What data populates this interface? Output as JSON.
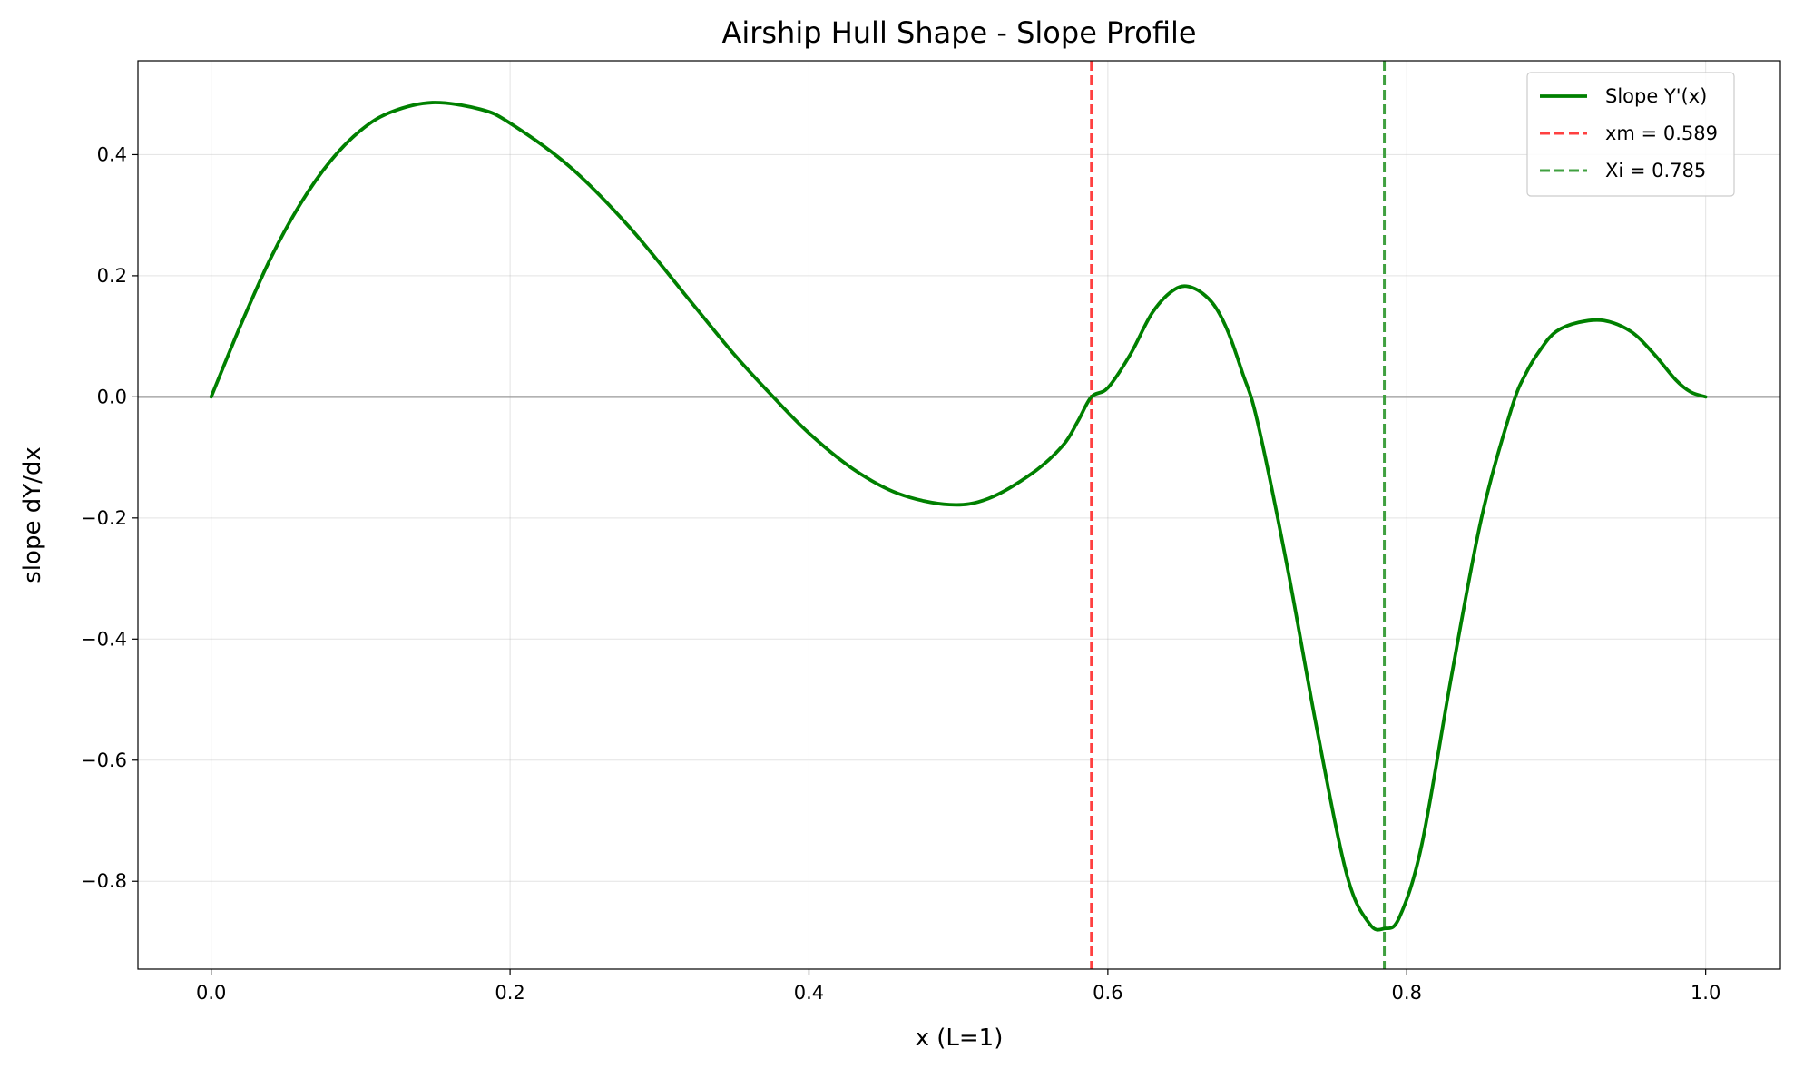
{
  "chart_data": {
    "type": "line",
    "title": "Airship Hull Shape - Slope Profile",
    "xlabel": "x (L=1)",
    "ylabel": "slope dY/dx",
    "xlim": [
      -0.049,
      1.05
    ],
    "ylim": [
      -0.945,
      0.555
    ],
    "xticks": [
      0.0,
      0.2,
      0.4,
      0.6,
      0.8,
      1.0
    ],
    "xtick_labels": [
      "0.0",
      "0.2",
      "0.4",
      "0.6",
      "0.8",
      "1.0"
    ],
    "yticks": [
      0.4,
      0.2,
      0.0,
      -0.2,
      -0.4,
      -0.6,
      -0.8
    ],
    "ytick_labels": [
      "0.4",
      "0.2",
      "0.0",
      "−0.2",
      "−0.4",
      "−0.6",
      "−0.8"
    ],
    "grid": true,
    "legend_position": "top-right",
    "series": [
      {
        "name": "Slope Y'(x)",
        "color": "#008000",
        "style": "solid",
        "x": [
          0.0,
          0.02,
          0.04,
          0.06,
          0.08,
          0.1,
          0.12,
          0.148,
          0.18,
          0.2,
          0.24,
          0.28,
          0.32,
          0.35,
          0.376,
          0.4,
          0.43,
          0.46,
          0.494,
          0.52,
          0.55,
          0.57,
          0.58,
          0.589,
          0.6,
          0.615,
          0.63,
          0.645,
          0.657,
          0.67,
          0.68,
          0.69,
          0.7,
          0.72,
          0.74,
          0.76,
          0.775,
          0.785,
          0.795,
          0.81,
          0.83,
          0.85,
          0.87,
          0.88,
          0.89,
          0.9,
          0.915,
          0.932,
          0.95,
          0.965,
          0.98,
          0.99,
          1.0
        ],
        "y": [
          0.0,
          0.12,
          0.23,
          0.32,
          0.39,
          0.44,
          0.47,
          0.486,
          0.475,
          0.452,
          0.38,
          0.28,
          0.16,
          0.07,
          0.0,
          -0.06,
          -0.12,
          -0.16,
          -0.178,
          -0.168,
          -0.125,
          -0.08,
          -0.04,
          0.0,
          0.015,
          0.07,
          0.14,
          0.178,
          0.18,
          0.155,
          0.11,
          0.04,
          -0.04,
          -0.28,
          -0.55,
          -0.79,
          -0.87,
          -0.878,
          -0.86,
          -0.74,
          -0.46,
          -0.2,
          -0.02,
          0.04,
          0.08,
          0.108,
          0.123,
          0.126,
          0.108,
          0.072,
          0.028,
          0.008,
          0.0
        ]
      }
    ],
    "vlines": [
      {
        "name": "xm = 0.589",
        "x": 0.589,
        "color": "#ff4040",
        "style": "dashed"
      },
      {
        "name": "Xi = 0.785",
        "x": 0.785,
        "color": "#40a040",
        "style": "dashed"
      }
    ],
    "hlines": [
      {
        "y": 0.0,
        "color": "#999999",
        "style": "solid"
      }
    ]
  }
}
